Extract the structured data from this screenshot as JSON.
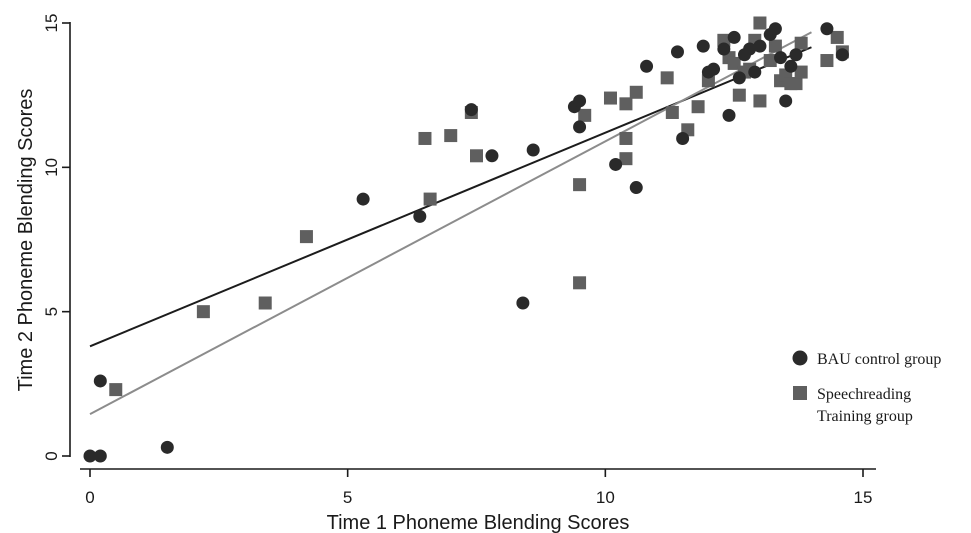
{
  "chart_data": {
    "type": "scatter",
    "xlabel": "Time 1 Phoneme Blending Scores",
    "ylabel": "Time 2 Phoneme Blending Scores",
    "xlim": [
      0,
      15
    ],
    "ylim": [
      0,
      15
    ],
    "xticks": [
      "0",
      "5",
      "10",
      "15"
    ],
    "yticks": [
      "0",
      "5",
      "10",
      "15"
    ],
    "grid": false,
    "legend_position": "right",
    "series": [
      {
        "name": "BAU control group",
        "marker": "circle",
        "color": "#2a2a2a",
        "points": [
          [
            0.0,
            0.0
          ],
          [
            0.2,
            0.0
          ],
          [
            0.2,
            2.6
          ],
          [
            1.5,
            0.3
          ],
          [
            5.3,
            8.9
          ],
          [
            6.4,
            8.3
          ],
          [
            7.4,
            12.0
          ],
          [
            7.8,
            10.4
          ],
          [
            8.4,
            5.3
          ],
          [
            8.6,
            10.6
          ],
          [
            9.4,
            12.1
          ],
          [
            9.5,
            12.3
          ],
          [
            9.5,
            11.4
          ],
          [
            10.2,
            10.1
          ],
          [
            10.6,
            9.3
          ],
          [
            10.8,
            13.5
          ],
          [
            11.4,
            14.0
          ],
          [
            11.5,
            11.0
          ],
          [
            11.9,
            14.2
          ],
          [
            12.0,
            13.3
          ],
          [
            12.1,
            13.4
          ],
          [
            12.3,
            14.1
          ],
          [
            12.4,
            11.8
          ],
          [
            12.5,
            14.5
          ],
          [
            12.6,
            13.1
          ],
          [
            12.7,
            13.9
          ],
          [
            12.8,
            14.1
          ],
          [
            12.9,
            13.3
          ],
          [
            13.0,
            14.2
          ],
          [
            13.2,
            14.6
          ],
          [
            13.3,
            14.8
          ],
          [
            13.4,
            13.8
          ],
          [
            13.5,
            12.3
          ],
          [
            13.6,
            13.5
          ],
          [
            13.7,
            13.9
          ],
          [
            14.3,
            14.8
          ],
          [
            14.6,
            13.9
          ]
        ],
        "fit": {
          "intercept": 3.8,
          "slope": 0.74,
          "x_range": [
            0,
            14
          ]
        }
      },
      {
        "name": "Speechreading Training group",
        "marker": "square",
        "color": "#5f5f5f",
        "points": [
          [
            0.5,
            2.3
          ],
          [
            2.2,
            5.0
          ],
          [
            3.4,
            5.3
          ],
          [
            4.2,
            7.6
          ],
          [
            6.5,
            11.0
          ],
          [
            6.6,
            8.9
          ],
          [
            7.0,
            11.1
          ],
          [
            7.4,
            11.9
          ],
          [
            7.5,
            10.4
          ],
          [
            9.5,
            9.4
          ],
          [
            9.5,
            6.0
          ],
          [
            9.6,
            11.8
          ],
          [
            10.1,
            12.4
          ],
          [
            10.4,
            12.2
          ],
          [
            10.4,
            10.3
          ],
          [
            10.4,
            11.0
          ],
          [
            10.6,
            12.6
          ],
          [
            11.2,
            13.1
          ],
          [
            11.3,
            11.9
          ],
          [
            11.6,
            11.3
          ],
          [
            11.8,
            12.1
          ],
          [
            12.0,
            13.0
          ],
          [
            12.3,
            14.4
          ],
          [
            12.4,
            13.8
          ],
          [
            12.5,
            13.6
          ],
          [
            12.6,
            12.5
          ],
          [
            12.7,
            13.3
          ],
          [
            12.9,
            14.4
          ],
          [
            13.0,
            12.3
          ],
          [
            13.0,
            15.0
          ],
          [
            13.2,
            13.7
          ],
          [
            13.4,
            13.0
          ],
          [
            13.5,
            13.2
          ],
          [
            13.6,
            12.9
          ],
          [
            13.7,
            12.9
          ],
          [
            13.8,
            13.3
          ],
          [
            13.8,
            14.3
          ],
          [
            14.3,
            13.7
          ],
          [
            14.5,
            14.5
          ],
          [
            14.6,
            14.0
          ],
          [
            12.8,
            13.4
          ],
          [
            13.3,
            14.2
          ]
        ],
        "fit": {
          "intercept": 1.45,
          "slope": 0.945,
          "x_range": [
            0,
            14
          ]
        }
      }
    ]
  }
}
